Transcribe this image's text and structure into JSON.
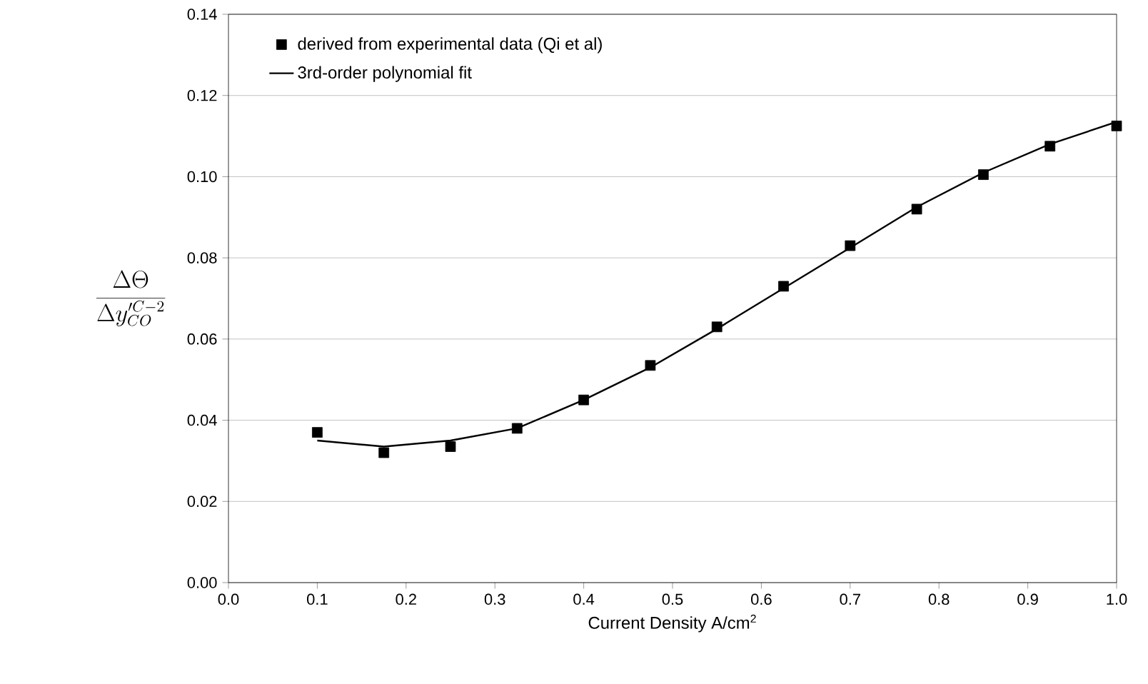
{
  "chart_data": {
    "type": "scatter",
    "xlabel": "Current Density A/cm$^{2}$",
    "ylabel": "\\frac{\\Delta\\Theta}{\\Delta y'^{C-2}_{CO}}",
    "series": [
      {
        "name": "derived from experimental data (Qi et al)",
        "marker": "square",
        "color": "#000000",
        "x": [
          0.1,
          0.175,
          0.25,
          0.325,
          0.4,
          0.475,
          0.55,
          0.625,
          0.7,
          0.775,
          0.85,
          0.925,
          1.0
        ],
        "values": [
          0.037,
          0.032,
          0.0335,
          0.038,
          0.045,
          0.0535,
          0.063,
          0.073,
          0.083,
          0.092,
          0.1005,
          0.1075,
          0.1125
        ]
      },
      {
        "name": "3rd-order polynomial fit",
        "type": "line",
        "marker": "none",
        "line_style": "solid",
        "color": "#000000",
        "x": [
          0.1,
          0.175,
          0.25,
          0.325,
          0.4,
          0.475,
          0.55,
          0.625,
          0.7,
          0.775,
          0.85,
          0.925,
          1.0
        ],
        "values": [
          0.035,
          0.0335,
          0.035,
          0.038,
          0.045,
          0.053,
          0.0625,
          0.0725,
          0.0825,
          0.0925,
          0.101,
          0.108,
          0.1135
        ]
      }
    ],
    "xlim": [
      0,
      1
    ],
    "ylim": [
      0,
      0.14
    ],
    "xticks": [
      {
        "value": 0,
        "label": "0.0"
      },
      {
        "value": 0.1,
        "label": "0.1"
      },
      {
        "value": 0.2,
        "label": "0.2"
      },
      {
        "value": 0.3,
        "label": "0.3"
      },
      {
        "value": 0.4,
        "label": "0.4"
      },
      {
        "value": 0.5,
        "label": "0.5"
      },
      {
        "value": 0.6,
        "label": "0.6"
      },
      {
        "value": 0.7,
        "label": "0.7"
      },
      {
        "value": 0.8,
        "label": "0.8"
      },
      {
        "value": 0.9,
        "label": "0.9"
      },
      {
        "value": 1,
        "label": "1.0"
      }
    ],
    "yticks": [
      {
        "value": 0,
        "label": "0.00"
      },
      {
        "value": 0.02,
        "label": "0.02"
      },
      {
        "value": 0.04,
        "label": "0.04"
      },
      {
        "value": 0.06,
        "label": "0.06"
      },
      {
        "value": 0.08,
        "label": "0.08"
      },
      {
        "value": 0.1,
        "label": "0.10"
      },
      {
        "value": 0.12,
        "label": "0.12"
      },
      {
        "value": 0.14,
        "label": "0.14"
      }
    ],
    "grid": "y",
    "legend": "top left"
  }
}
